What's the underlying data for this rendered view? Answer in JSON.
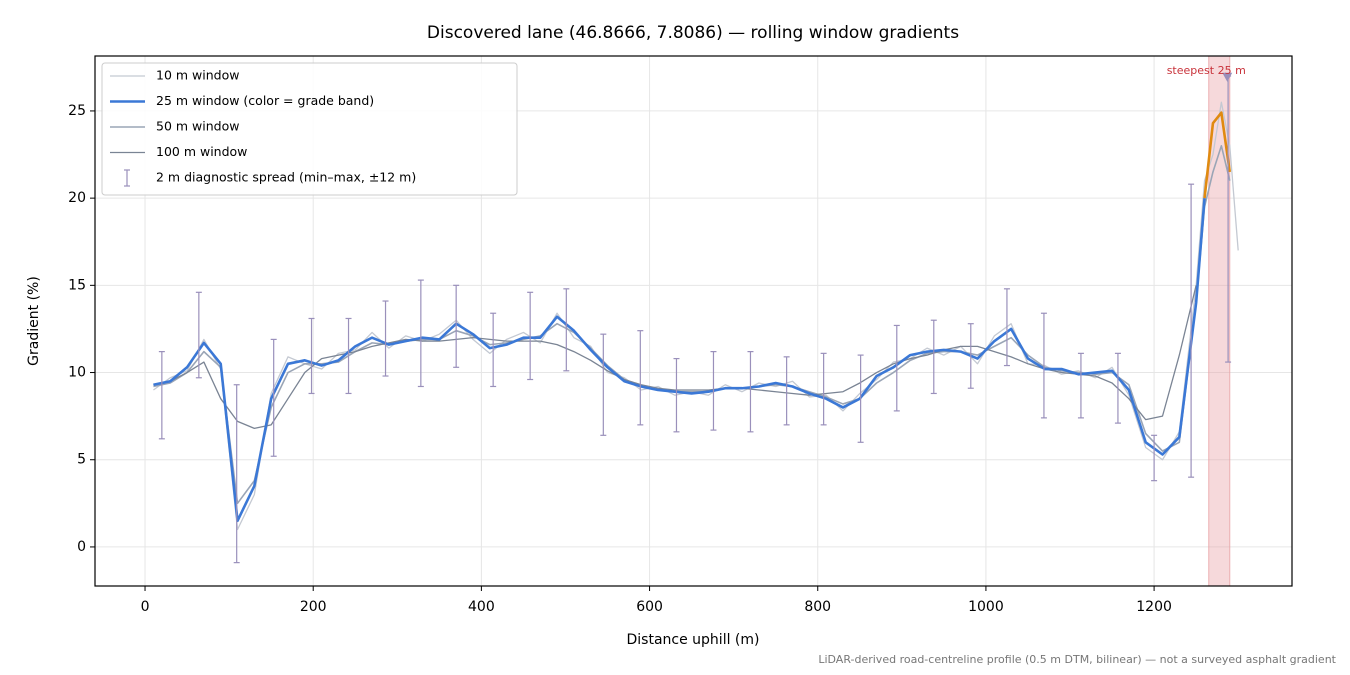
{
  "chart_data": {
    "type": "line",
    "title": "Discovered lane (46.8666, 7.8086) — rolling window gradients",
    "x_label": "Distance uphill (m)",
    "y_label": "Gradient (%)",
    "note": "LiDAR-derived road-centreline profile (0.5 m DTM, bilinear) — not a surveyed asphalt gradient",
    "xlim": [
      -59.5,
      1364
    ],
    "ylim": [
      -2.24,
      28.15
    ],
    "xticks": [
      0,
      200,
      400,
      600,
      800,
      1000,
      1200
    ],
    "yticks": [
      0,
      5,
      10,
      15,
      20,
      25
    ],
    "grid": true,
    "legend": "upper left",
    "x": [
      10,
      30,
      50,
      70,
      90,
      110,
      130,
      150,
      170,
      190,
      210,
      230,
      250,
      270,
      290,
      310,
      330,
      350,
      370,
      390,
      410,
      430,
      450,
      470,
      490,
      510,
      530,
      550,
      570,
      590,
      610,
      630,
      650,
      670,
      690,
      710,
      730,
      750,
      770,
      790,
      810,
      830,
      850,
      870,
      890,
      910,
      930,
      950,
      970,
      990,
      1010,
      1030,
      1050,
      1070,
      1090,
      1110,
      1130,
      1150,
      1170,
      1190,
      1210,
      1230,
      1250,
      1260,
      1270,
      1280,
      1290,
      1300
    ],
    "series": [
      {
        "name": "10 m window",
        "color": "#c4c9d2",
        "width": 1.3,
        "values": [
          9.0,
          9.7,
          10.1,
          11.9,
          10.2,
          1.0,
          3.0,
          8.8,
          10.9,
          10.5,
          10.2,
          11.1,
          11.3,
          12.3,
          11.4,
          12.1,
          11.8,
          12.2,
          13.0,
          11.9,
          11.1,
          11.9,
          12.3,
          11.7,
          13.4,
          12.0,
          11.5,
          10.0,
          9.7,
          9.0,
          9.2,
          8.7,
          8.9,
          8.7,
          9.3,
          8.9,
          9.4,
          9.2,
          9.5,
          8.6,
          8.7,
          7.8,
          8.8,
          9.6,
          10.6,
          10.8,
          11.4,
          11.0,
          11.5,
          10.5,
          12.1,
          12.8,
          10.5,
          10.4,
          9.9,
          10.1,
          9.7,
          10.3,
          8.7,
          5.7,
          5.0,
          6.6,
          15.0,
          21.0,
          22.5,
          25.5,
          23.0,
          17.0
        ]
      },
      {
        "name": "25 m window (color = grade band)",
        "color": "#3b78d6",
        "width": 2.6,
        "bands": [
          {
            "from": 0,
            "color": "#3b78d6"
          },
          {
            "from": 20,
            "color": "#e08a10"
          }
        ],
        "values": [
          9.3,
          9.5,
          10.3,
          11.7,
          10.5,
          1.5,
          3.5,
          8.5,
          10.5,
          10.7,
          10.4,
          10.7,
          11.5,
          12.0,
          11.6,
          11.8,
          12.0,
          11.9,
          12.8,
          12.2,
          11.4,
          11.6,
          12.0,
          12.0,
          13.2,
          12.4,
          11.3,
          10.3,
          9.5,
          9.2,
          9.0,
          8.9,
          8.8,
          8.9,
          9.1,
          9.1,
          9.2,
          9.4,
          9.2,
          8.8,
          8.5,
          8.0,
          8.5,
          9.8,
          10.3,
          11.0,
          11.2,
          11.3,
          11.2,
          10.8,
          11.8,
          12.5,
          10.8,
          10.2,
          10.2,
          9.9,
          10.0,
          10.1,
          9.0,
          6.0,
          5.3,
          6.3,
          14.0,
          20.0,
          24.3,
          24.9,
          21.5,
          null
        ]
      },
      {
        "name": "50 m window",
        "color": "#9aa5b6",
        "width": 1.6,
        "values": [
          9.2,
          9.4,
          10.0,
          11.2,
          10.3,
          2.5,
          3.8,
          8.0,
          10.0,
          10.5,
          10.5,
          10.6,
          11.2,
          11.7,
          11.6,
          11.8,
          11.9,
          11.9,
          12.4,
          12.1,
          11.6,
          11.7,
          11.9,
          12.1,
          12.8,
          12.3,
          11.4,
          10.4,
          9.6,
          9.2,
          9.0,
          8.9,
          8.9,
          8.9,
          9.1,
          9.1,
          9.2,
          9.3,
          9.2,
          8.9,
          8.6,
          8.2,
          8.5,
          9.4,
          10.0,
          10.7,
          11.1,
          11.2,
          11.2,
          11.0,
          11.5,
          12.0,
          11.0,
          10.3,
          10.1,
          10.0,
          9.9,
          10.0,
          9.3,
          6.5,
          5.5,
          6.0,
          14.0,
          19.5,
          21.5,
          23.0,
          21.0,
          null
        ]
      },
      {
        "name": "100 m window",
        "color": "#7a8494",
        "width": 1.3,
        "values": [
          9.3,
          9.5,
          10.0,
          10.6,
          8.5,
          7.2,
          6.8,
          7.0,
          8.5,
          10.0,
          10.8,
          11.0,
          11.2,
          11.5,
          11.7,
          11.9,
          11.8,
          11.8,
          11.9,
          12.0,
          11.9,
          11.8,
          11.8,
          11.8,
          11.6,
          11.2,
          10.7,
          10.1,
          9.6,
          9.3,
          9.1,
          9.0,
          9.0,
          9.0,
          9.1,
          9.1,
          9.0,
          8.9,
          8.8,
          8.7,
          8.8,
          8.9,
          9.4,
          10.0,
          10.5,
          10.8,
          11.0,
          11.3,
          11.5,
          11.5,
          11.2,
          10.9,
          10.5,
          10.2,
          10.0,
          9.9,
          9.8,
          9.4,
          8.5,
          7.3,
          7.5,
          11.0,
          15.0,
          null,
          null,
          null,
          null,
          null
        ]
      }
    ],
    "errorbars": {
      "name": "2 m diagnostic spread (min–max, ±12 m)",
      "color": "#9a90bb",
      "x": [
        20,
        64,
        109,
        153,
        198,
        242,
        286,
        328,
        370,
        414,
        458,
        501,
        545,
        589,
        632,
        676,
        720,
        763,
        807,
        851,
        894,
        938,
        982,
        1025,
        1069,
        1113,
        1157,
        1200,
        1244,
        1288
      ],
      "low": [
        6.2,
        9.7,
        -0.9,
        5.2,
        8.8,
        8.8,
        9.8,
        9.2,
        10.3,
        9.2,
        9.6,
        10.1,
        6.4,
        7.0,
        6.6,
        6.7,
        6.6,
        7.0,
        7.0,
        6.0,
        7.8,
        8.8,
        9.1,
        10.4,
        7.4,
        7.4,
        7.1,
        3.8,
        4.0,
        10.6
      ],
      "high": [
        11.2,
        14.6,
        9.3,
        11.9,
        13.1,
        13.1,
        14.1,
        15.3,
        15.0,
        13.4,
        14.6,
        14.8,
        12.2,
        12.4,
        10.8,
        11.2,
        11.2,
        10.9,
        11.1,
        11.0,
        12.7,
        13.0,
        12.8,
        14.8,
        13.4,
        11.1,
        11.1,
        6.4,
        20.8,
        27.0
      ]
    },
    "highlight": {
      "x": [
        1265,
        1290
      ],
      "color": "#e8a0a4",
      "label": "steepest 25 m",
      "label_color": "#c8323a",
      "marker": {
        "x": 1287,
        "y": 26.9
      }
    }
  }
}
